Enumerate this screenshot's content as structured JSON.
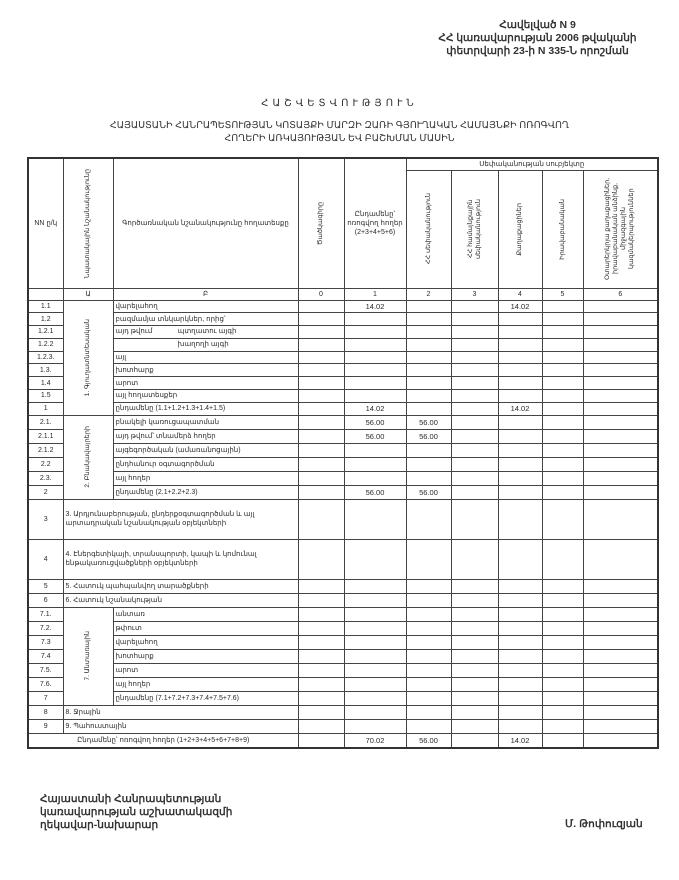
{
  "annex": {
    "line1": "Հավելված N 9",
    "line2": "ՀՀ կառավարության 2006 թվականի",
    "line3": "փետրվարի 23-ի N 335-Ն որոշման"
  },
  "title": "ՀԱՇՎԵՏՎՈՒԹՅՈՒՆ",
  "subtitle_line1": "ՀԱՅԱՍՏԱՆԻ ՀԱՆՐԱՊԵՏՈՒԹՅԱՆ ԿՈՏԱՅՔԻ ՄԱՐԶԻ ԶԱՌԻ ԳՅՈՒՂԱԿԱՆ ՀԱՄԱՅՆՔԻ ՈՌՈԳՎՈՂ",
  "subtitle_line2": "ՀՈՂԵՐԻ ԱՌԿԱՅՈՒԹՅԱՆ ԵՎ ԲԱՇԽՄԱՆ ՄԱՍԻՆ",
  "table": {
    "headers": {
      "nn": "NN ը/կ",
      "purpose": "Նպատակային նշանակությունը",
      "function": "Գործառնական նշանակությունը հողատեսքը",
      "code": "Ծածկագիրը",
      "total": "Ընդամենը՝ ոռոգվող հողեր (2+3+4+5+6)",
      "ownership": "Սեփականության սուբյեկտը",
      "owners": [
        "ՀՀ սեփականություն",
        "ՀՀ համայնքային սեփականություն",
        "Քաղաքացիներ",
        "Իրավաբանական",
        "Օտարերկրյա քաղաքացիներ, իրավաբանական անձինք, միջազգային կազմակերպություններ"
      ],
      "numbers": [
        "",
        "Ա",
        "Բ",
        "0",
        "1",
        "2",
        "3",
        "4",
        "5",
        "6"
      ]
    },
    "groups": {
      "g1": "1. Գյուղատնտեսական",
      "g2": "2. Բնակավայրերի",
      "g7": "7. Անտառային"
    },
    "rows": [
      {
        "num": "1.1",
        "group": "g1",
        "label": "վարելահող",
        "values": [
          "",
          "14.02",
          "",
          "",
          "14.02",
          "",
          ""
        ]
      },
      {
        "num": "1.2",
        "label": "բազմամյա տնկարկներ, որից՝",
        "values": [
          "",
          "",
          "",
          "",
          "",
          "",
          ""
        ]
      },
      {
        "num": "1.2.1",
        "prefix": "այդ թվում",
        "label": "պտղատու այգի",
        "values": [
          "",
          "",
          "",
          "",
          "",
          "",
          ""
        ]
      },
      {
        "num": "1.2.2",
        "indent": true,
        "label": "խաղողի այգի",
        "values": [
          "",
          "",
          "",
          "",
          "",
          "",
          ""
        ]
      },
      {
        "num": "1.2.3.",
        "label": "այլ",
        "values": [
          "",
          "",
          "",
          "",
          "",
          "",
          ""
        ]
      },
      {
        "num": "1.3.",
        "label": "խոտհարք",
        "values": [
          "",
          "",
          "",
          "",
          "",
          "",
          ""
        ]
      },
      {
        "num": "1.4",
        "label": "արոտ",
        "values": [
          "",
          "",
          "",
          "",
          "",
          "",
          ""
        ]
      },
      {
        "num": "1.5",
        "label": "այլ հողատեսքեր",
        "values": [
          "",
          "",
          "",
          "",
          "",
          "",
          ""
        ]
      },
      {
        "num": "1",
        "label": "ընդամենը (1.1+1.2+1.3+1.4+1.5)",
        "values": [
          "",
          "14.02",
          "",
          "",
          "14.02",
          "",
          ""
        ]
      },
      {
        "num": "2.1.",
        "group": "g2",
        "label": "բնակելի կառուցապատման",
        "values": [
          "",
          "56.00",
          "56.00",
          "",
          "",
          "",
          ""
        ]
      },
      {
        "num": "2.1.1",
        "label": "այդ թվում՝ տնամերձ հողեր",
        "values": [
          "",
          "56.00",
          "56.00",
          "",
          "",
          "",
          ""
        ]
      },
      {
        "num": "2.1.2",
        "label": "այգեգործական (ամառանոցային)",
        "values": [
          "",
          "",
          "",
          "",
          "",
          "",
          ""
        ]
      },
      {
        "num": "2.2",
        "label": "ընդհանուր օգտագործման",
        "values": [
          "",
          "",
          "",
          "",
          "",
          "",
          ""
        ]
      },
      {
        "num": "2.3.",
        "label": "այլ հողեր",
        "values": [
          "",
          "",
          "",
          "",
          "",
          "",
          ""
        ]
      },
      {
        "num": "2",
        "label": "ընդամենը (2.1+2.2+2.3)",
        "values": [
          "",
          "56.00",
          "56.00",
          "",
          "",
          "",
          ""
        ]
      },
      {
        "num": "3",
        "wide": true,
        "tall": true,
        "label": "3. Արդյունաբերության, ընդերքօգտագործման և այլ արտադրական նշանակության օբյեկտների",
        "values": [
          "",
          "",
          "",
          "",
          "",
          "",
          ""
        ]
      },
      {
        "num": "4",
        "wide": true,
        "tall": true,
        "label": "4. Էներգետիկայի, տրանսպորտի, կապի և կոմունալ ենթակառուցվածքների օբյեկտների",
        "values": [
          "",
          "",
          "",
          "",
          "",
          "",
          ""
        ]
      },
      {
        "num": "5",
        "wide": true,
        "label": "5. Հատուկ պահպանվող տարածքների",
        "values": [
          "",
          "",
          "",
          "",
          "",
          "",
          ""
        ]
      },
      {
        "num": "6",
        "wide": true,
        "label": "6. Հատուկ նշանակության",
        "values": [
          "",
          "",
          "",
          "",
          "",
          "",
          ""
        ]
      },
      {
        "num": "7.1.",
        "group": "g7",
        "label": "անտառ",
        "values": [
          "",
          "",
          "",
          "",
          "",
          "",
          ""
        ]
      },
      {
        "num": "7.2.",
        "label": "թփուտ",
        "values": [
          "",
          "",
          "",
          "",
          "",
          "",
          ""
        ]
      },
      {
        "num": "7.3",
        "label": "վարելահող",
        "values": [
          "",
          "",
          "",
          "",
          "",
          "",
          ""
        ]
      },
      {
        "num": "7.4",
        "label": "խոտհարք",
        "values": [
          "",
          "",
          "",
          "",
          "",
          "",
          ""
        ]
      },
      {
        "num": "7.5.",
        "label": "արոտ",
        "values": [
          "",
          "",
          "",
          "",
          "",
          "",
          ""
        ]
      },
      {
        "num": "7.6.",
        "label": "այլ հողեր",
        "values": [
          "",
          "",
          "",
          "",
          "",
          "",
          ""
        ]
      },
      {
        "num": "7",
        "label": "ընդամենը (7.1+7.2+7.3+7.4+7.5+7.6)",
        "values": [
          "",
          "",
          "",
          "",
          "",
          "",
          ""
        ]
      },
      {
        "num": "8",
        "wide": true,
        "label": "8. Ջրային",
        "values": [
          "",
          "",
          "",
          "",
          "",
          "",
          ""
        ]
      },
      {
        "num": "9",
        "wide": true,
        "label": "9. Պահուստային",
        "values": [
          "",
          "",
          "",
          "",
          "",
          "",
          ""
        ]
      }
    ],
    "grand_total": {
      "label": "Ընդամենը՝ ոռոգվող հողեր (1+2+3+4+5+6+7+8+9)",
      "values": [
        "",
        "70.02",
        "56.00",
        "",
        "14.02",
        "",
        ""
      ]
    }
  },
  "signature": {
    "line1": "Հայաստանի Հանրապետության",
    "line2": "կառավարության աշխատակազմի",
    "line3": "ղեկավար-նախարար",
    "name": "Մ. Թոփուզյան"
  }
}
